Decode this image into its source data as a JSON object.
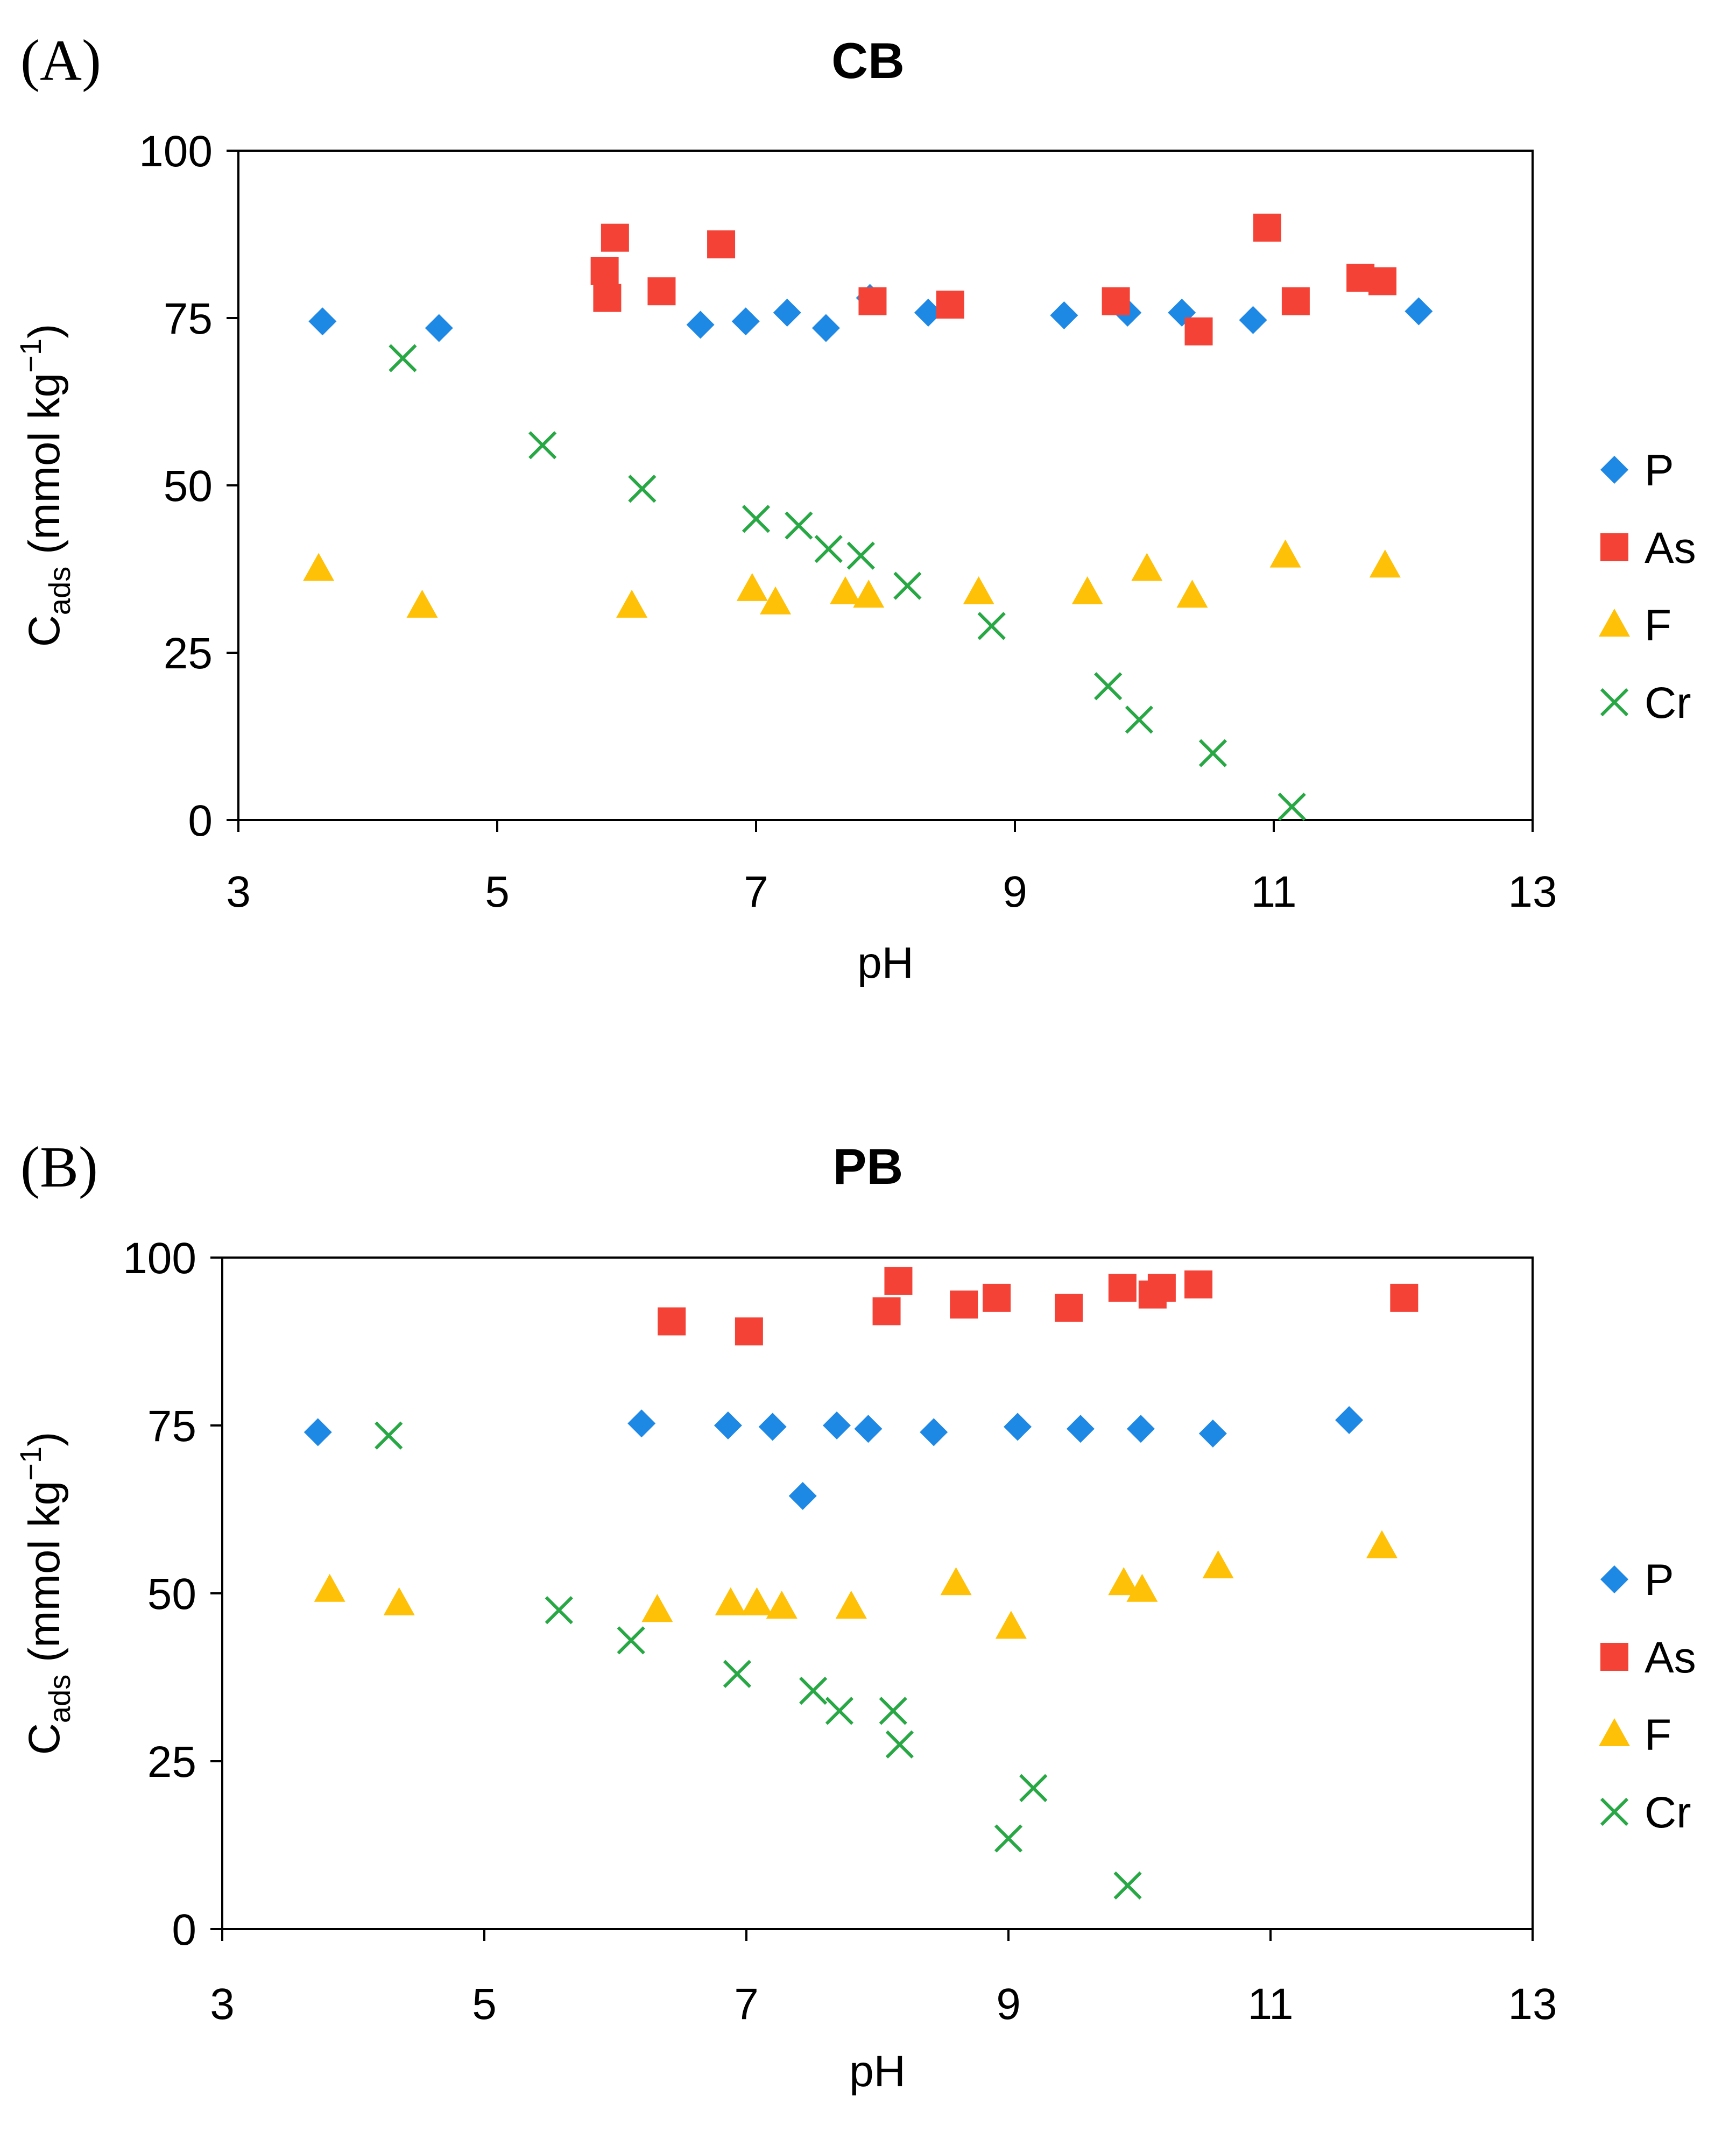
{
  "colors": {
    "P": "#1E88E5",
    "As": "#F44336",
    "F": "#FFC107",
    "Cr": "#27A844"
  },
  "chart_data": [
    {
      "type": "scatter",
      "panel_label": "(A)",
      "title": "CB",
      "xlabel": "pH",
      "ylabel_main": "C",
      "ylabel_sub": "ads",
      "ylabel_units": " (mmol kg",
      "ylabel_sup": "−1",
      "ylabel_close": ")",
      "xlim": [
        3,
        13
      ],
      "ylim": [
        0,
        100
      ],
      "xticks": [
        "3",
        "5",
        "7",
        "9",
        "11",
        "13"
      ],
      "yticks": [
        "0",
        "25",
        "50",
        "75",
        "100"
      ],
      "legend_position": "right",
      "series": [
        {
          "name": "P",
          "marker": "diamond",
          "x": [
            3.65,
            4.55,
            6.57,
            6.92,
            7.24,
            7.54,
            7.88,
            8.33,
            9.38,
            9.87,
            10.29,
            10.84,
            12.12
          ],
          "y": [
            74.5,
            73.5,
            74,
            74.5,
            75.8,
            73.5,
            78,
            75.8,
            75.4,
            75.8,
            75.8,
            74.7,
            76
          ]
        },
        {
          "name": "As",
          "marker": "square",
          "x": [
            5.83,
            5.85,
            5.91,
            6.27,
            6.73,
            7.9,
            8.5,
            9.78,
            10.42,
            10.95,
            11.17,
            11.67,
            11.84
          ],
          "y": [
            82,
            78,
            87,
            79,
            86,
            77.5,
            77,
            77.5,
            73,
            88.5,
            77.5,
            81,
            80.5
          ]
        },
        {
          "name": "F",
          "marker": "triangle",
          "x": [
            3.62,
            4.42,
            6.04,
            6.97,
            7.15,
            7.69,
            7.87,
            8.72,
            9.56,
            10.02,
            10.37,
            11.09,
            11.86
          ],
          "y": [
            37.5,
            32,
            32,
            34.5,
            32.5,
            34,
            33.5,
            34,
            34,
            37.5,
            33.5,
            39.5,
            38
          ]
        },
        {
          "name": "Cr",
          "marker": "x",
          "x": [
            4.27,
            5.35,
            6.12,
            7.0,
            7.33,
            7.56,
            7.81,
            8.17,
            8.82,
            9.72,
            9.96,
            10.53,
            11.14
          ],
          "y": [
            69,
            56,
            49.5,
            45,
            44,
            40.5,
            39.5,
            35,
            29,
            20,
            15,
            10,
            2
          ]
        }
      ]
    },
    {
      "type": "scatter",
      "panel_label": "(B)",
      "title": "PB",
      "xlabel": "pH",
      "ylabel_main": "C",
      "ylabel_sub": "ads",
      "ylabel_units": " (mmol kg",
      "ylabel_sup": "−1",
      "ylabel_close": ")",
      "xlim": [
        3,
        13
      ],
      "ylim": [
        0,
        100
      ],
      "xticks": [
        "3",
        "5",
        "7",
        "9",
        "11",
        "13"
      ],
      "yticks": [
        "0",
        "25",
        "50",
        "75",
        "100"
      ],
      "legend_position": "right",
      "series": [
        {
          "name": "P",
          "marker": "diamond",
          "x": [
            3.73,
            6.2,
            6.86,
            7.2,
            7.43,
            7.69,
            7.93,
            8.43,
            9.07,
            9.55,
            10.01,
            10.56,
            11.6
          ],
          "y": [
            74,
            75.3,
            75,
            74.8,
            64.5,
            75,
            74.5,
            74,
            74.8,
            74.5,
            74.5,
            73.8,
            75.8
          ]
        },
        {
          "name": "As",
          "marker": "square",
          "x": [
            6.43,
            7.02,
            8.07,
            8.16,
            8.66,
            8.91,
            9.46,
            9.87,
            10.1,
            10.17,
            10.45,
            12.02
          ],
          "y": [
            90.5,
            89,
            92,
            96.5,
            93,
            94,
            92.5,
            95.5,
            94.5,
            95.5,
            96,
            94
          ]
        },
        {
          "name": "F",
          "marker": "triangle",
          "x": [
            3.82,
            4.35,
            6.32,
            6.88,
            7.08,
            7.27,
            7.8,
            8.6,
            9.02,
            9.88,
            10.02,
            10.6,
            11.85
          ],
          "y": [
            50.5,
            48.5,
            47.5,
            48.5,
            48.5,
            48,
            48,
            51.5,
            45,
            51.5,
            50.5,
            54,
            57
          ]
        },
        {
          "name": "Cr",
          "marker": "x",
          "x": [
            4.27,
            5.57,
            6.12,
            6.93,
            7.51,
            7.71,
            8.12,
            8.17,
            9.0,
            9.19,
            9.91
          ],
          "y": [
            73.5,
            47.5,
            43,
            38,
            35.5,
            32.5,
            32.5,
            27.5,
            13.5,
            21,
            6.5
          ]
        }
      ]
    }
  ]
}
